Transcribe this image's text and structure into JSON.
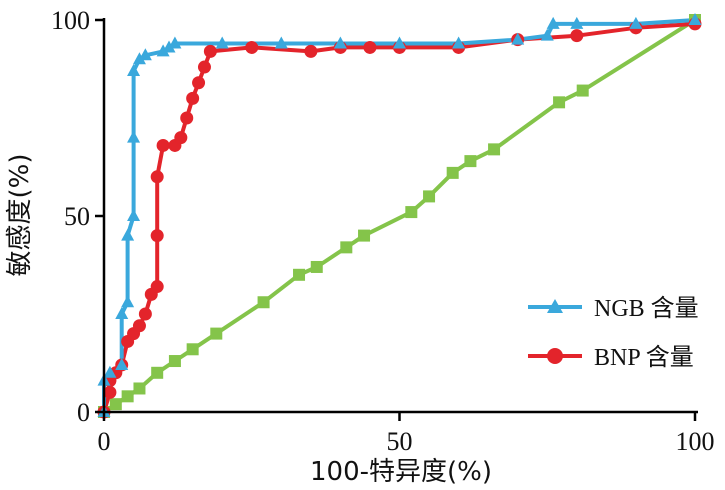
{
  "chart_data": {
    "type": "line",
    "xlabel": "100-特异度(%)",
    "ylabel": "敏感度(%)",
    "xlim": [
      0,
      100
    ],
    "ylim": [
      0,
      100
    ],
    "xticks": [
      "0",
      "50",
      "100"
    ],
    "yticks": [
      "0",
      "50",
      "100"
    ],
    "legend_position": "bottom-right",
    "grid": false,
    "series": [
      {
        "name": "NGB 含量",
        "color": "#3aa8dc",
        "marker": "triangle",
        "points": [
          [
            0,
            0
          ],
          [
            0,
            8
          ],
          [
            1,
            10
          ],
          [
            3,
            12
          ],
          [
            3,
            25
          ],
          [
            4,
            28
          ],
          [
            4,
            45
          ],
          [
            5,
            50
          ],
          [
            5,
            70
          ],
          [
            5,
            87
          ],
          [
            6,
            90
          ],
          [
            7,
            91
          ],
          [
            10,
            92
          ],
          [
            11,
            93
          ],
          [
            12,
            94
          ],
          [
            20,
            94
          ],
          [
            30,
            94
          ],
          [
            40,
            94
          ],
          [
            50,
            94
          ],
          [
            60,
            94
          ],
          [
            70,
            95
          ],
          [
            75,
            96
          ],
          [
            76,
            99
          ],
          [
            80,
            99
          ],
          [
            90,
            99
          ],
          [
            100,
            100
          ]
        ]
      },
      {
        "name": "BNP 含量",
        "color": "#e3242b",
        "marker": "circle",
        "points": [
          [
            0,
            0
          ],
          [
            1,
            5
          ],
          [
            1,
            8
          ],
          [
            2,
            10
          ],
          [
            3,
            12
          ],
          [
            4,
            18
          ],
          [
            5,
            20
          ],
          [
            6,
            22
          ],
          [
            7,
            25
          ],
          [
            8,
            30
          ],
          [
            9,
            32
          ],
          [
            9,
            45
          ],
          [
            9,
            60
          ],
          [
            10,
            68
          ],
          [
            12,
            68
          ],
          [
            13,
            70
          ],
          [
            14,
            75
          ],
          [
            15,
            80
          ],
          [
            16,
            84
          ],
          [
            17,
            88
          ],
          [
            18,
            92
          ],
          [
            25,
            93
          ],
          [
            35,
            92
          ],
          [
            40,
            93
          ],
          [
            45,
            93
          ],
          [
            50,
            93
          ],
          [
            60,
            93
          ],
          [
            70,
            95
          ],
          [
            80,
            96
          ],
          [
            90,
            98
          ],
          [
            100,
            99
          ]
        ]
      },
      {
        "name": "",
        "color": "#84c44a",
        "marker": "square",
        "points": [
          [
            0,
            0
          ],
          [
            2,
            2
          ],
          [
            4,
            4
          ],
          [
            6,
            6
          ],
          [
            9,
            10
          ],
          [
            12,
            13
          ],
          [
            15,
            16
          ],
          [
            19,
            20
          ],
          [
            27,
            28
          ],
          [
            33,
            35
          ],
          [
            36,
            37
          ],
          [
            41,
            42
          ],
          [
            44,
            45
          ],
          [
            52,
            51
          ],
          [
            55,
            55
          ],
          [
            59,
            61
          ],
          [
            62,
            64
          ],
          [
            66,
            67
          ],
          [
            77,
            79
          ],
          [
            81,
            82
          ],
          [
            100,
            100
          ]
        ]
      }
    ]
  }
}
